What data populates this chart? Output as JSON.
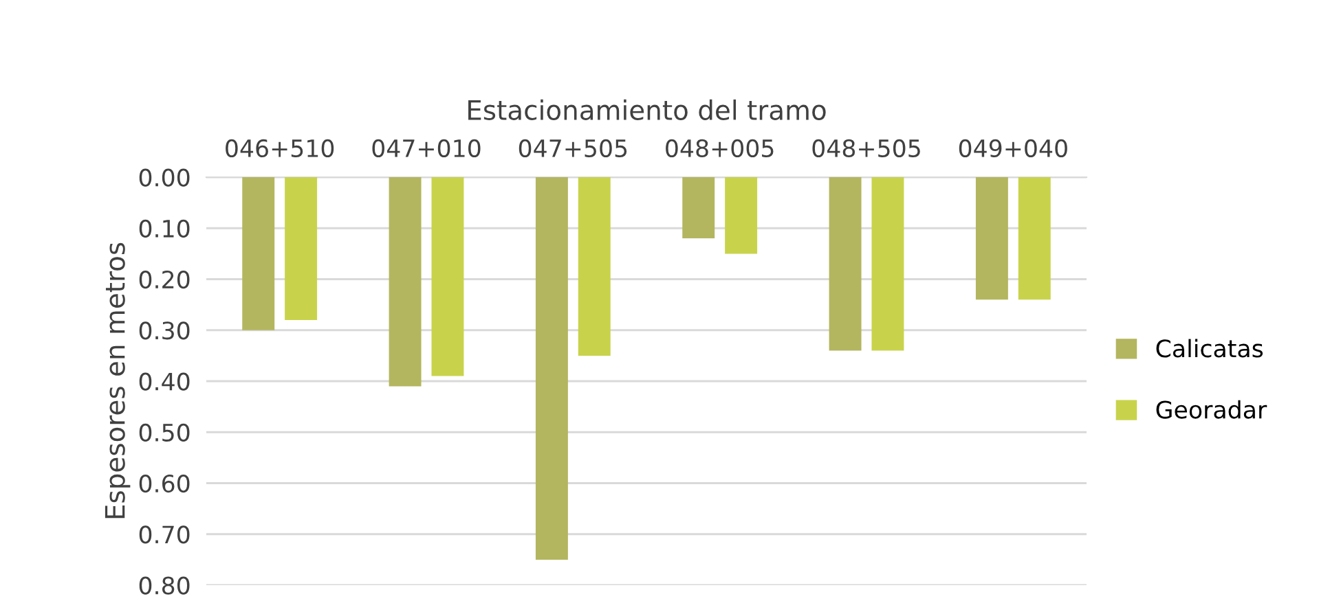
{
  "chart_data": {
    "type": "bar",
    "xlabel": "Estacionamiento del tramo",
    "ylabel": "Espesores en metros",
    "categories": [
      "046+510",
      "047+010",
      "047+505",
      "048+005",
      "048+505",
      "049+040"
    ],
    "series": [
      {
        "name": "Calicatas",
        "color": "#b3b65e",
        "values": [
          0.3,
          0.41,
          0.75,
          0.12,
          0.34,
          0.24
        ]
      },
      {
        "name": "Georadar",
        "color": "#c8d34b",
        "values": [
          0.28,
          0.39,
          0.35,
          0.15,
          0.34,
          0.24
        ]
      }
    ],
    "ylim": [
      0.8,
      0.0
    ],
    "yticks": [
      {
        "value": 0.0,
        "label": "0.00"
      },
      {
        "value": 0.1,
        "label": "0.10"
      },
      {
        "value": 0.2,
        "label": "0.20"
      },
      {
        "value": 0.3,
        "label": "0.30"
      },
      {
        "value": 0.4,
        "label": "0.40"
      },
      {
        "value": 0.5,
        "label": "0.50"
      },
      {
        "value": 0.6,
        "label": "0.60"
      },
      {
        "value": 0.7,
        "label": "0.70"
      },
      {
        "value": 0.8,
        "label": "0.80"
      }
    ],
    "grid": "y",
    "legend": "right"
  }
}
